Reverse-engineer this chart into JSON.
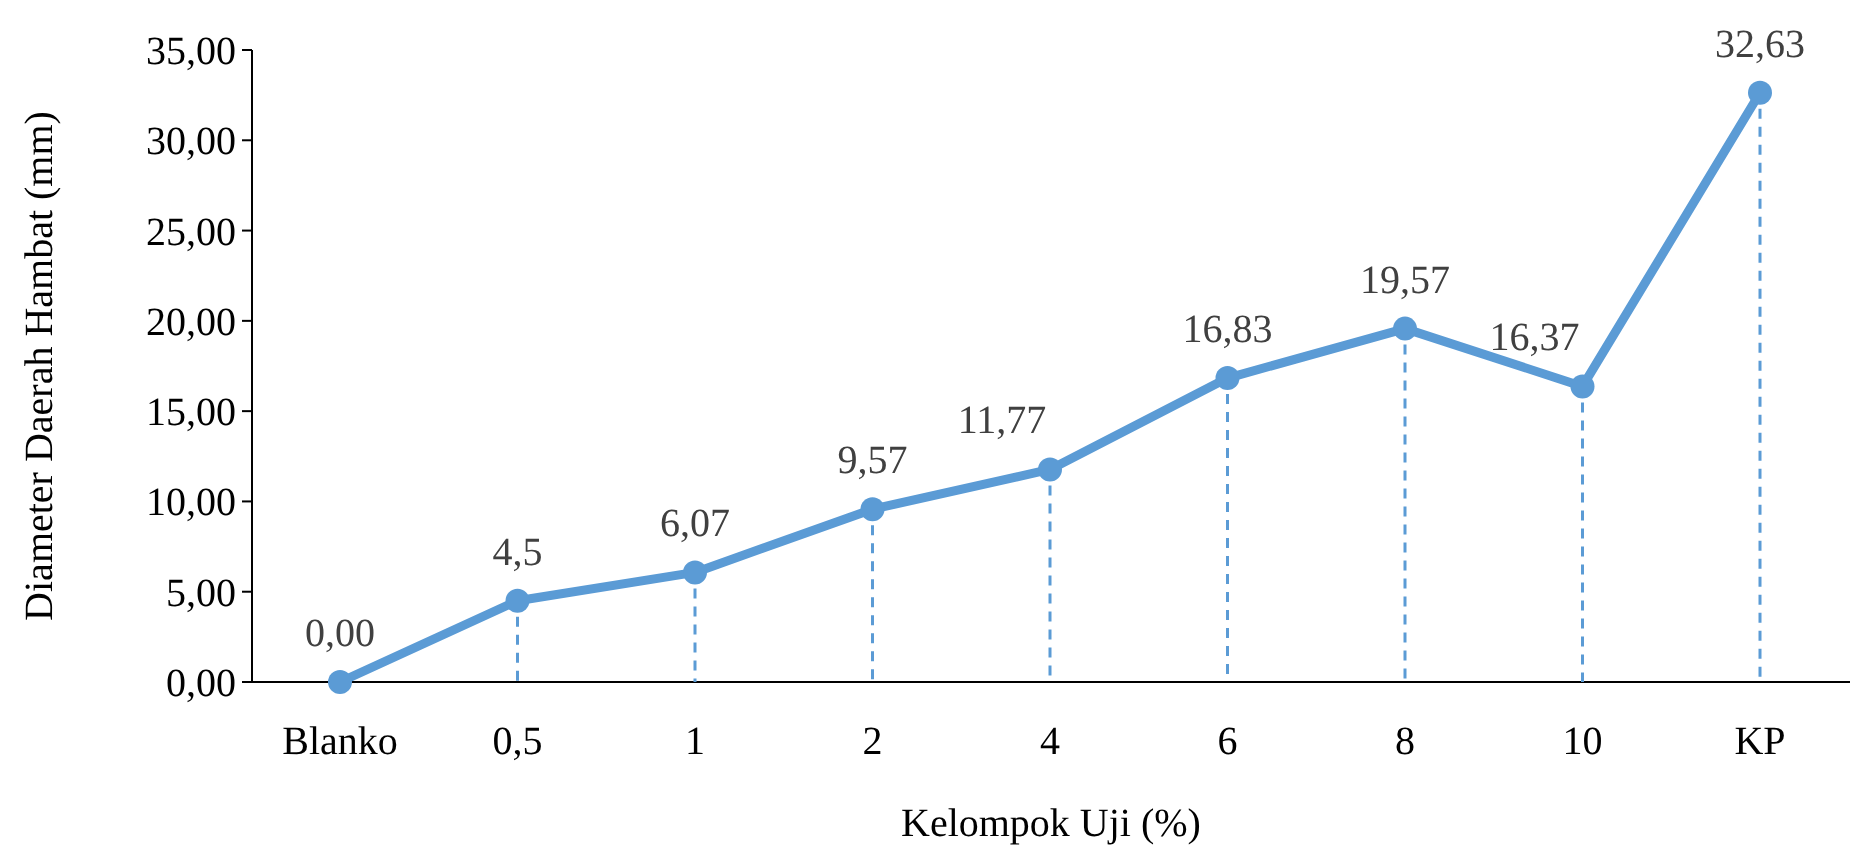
{
  "chart_data": {
    "type": "line",
    "xlabel": "Kelompok Uji (%)",
    "ylabel": "Diameter Daerah Hambat (mm)",
    "categories": [
      "Blanko",
      "0,5",
      "1",
      "2",
      "4",
      "6",
      "8",
      "10",
      "KP"
    ],
    "series": [
      {
        "color": "#5b9bd5",
        "values": [
          0.0,
          4.5,
          6.07,
          9.57,
          11.77,
          16.83,
          19.57,
          16.37,
          32.63
        ],
        "value_labels": [
          "0,00",
          "4,5",
          "6,07",
          "9,57",
          "11,77",
          "16,83",
          "19,57",
          "16,37",
          "32,63"
        ]
      }
    ],
    "ylim": [
      0,
      35
    ],
    "yticks": [
      {
        "value": 0,
        "label": "0,00"
      },
      {
        "value": 5,
        "label": "5,00"
      },
      {
        "value": 10,
        "label": "10,00"
      },
      {
        "value": 15,
        "label": "15,00"
      },
      {
        "value": 20,
        "label": "20,00"
      },
      {
        "value": 25,
        "label": "25,00"
      },
      {
        "value": 30,
        "label": "30,00"
      },
      {
        "value": 35,
        "label": "35,00"
      }
    ],
    "grid": "x",
    "marker": "circle",
    "line_style": "solid"
  }
}
